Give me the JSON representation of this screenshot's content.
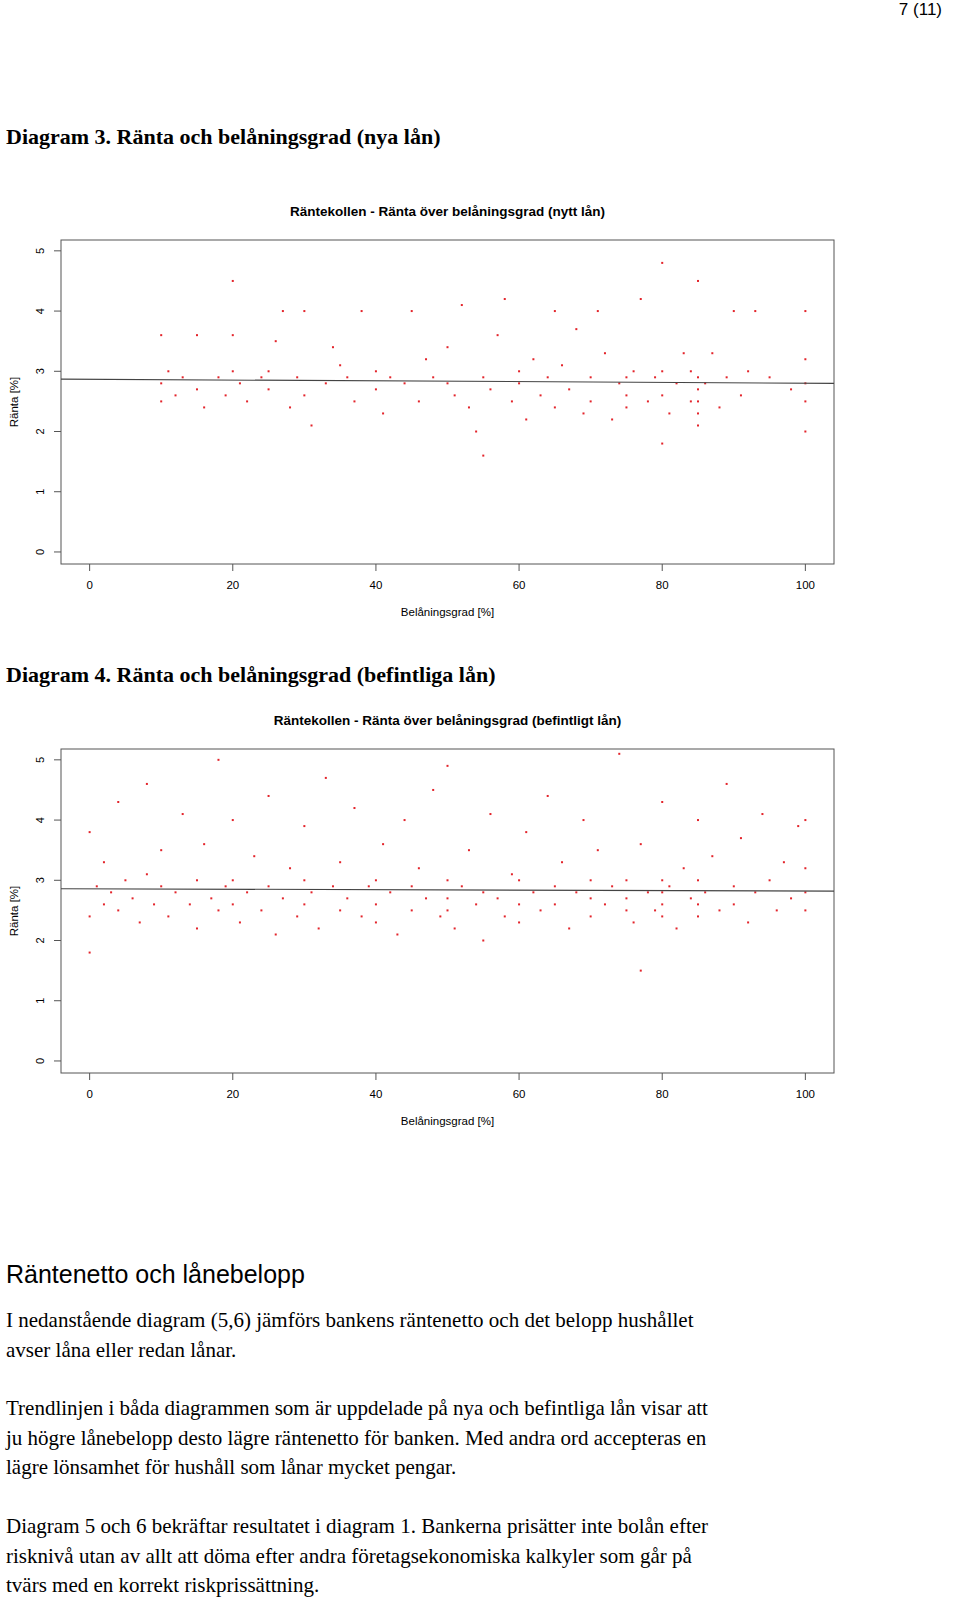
{
  "page_number": "7 (11)",
  "captions": [
    "Diagram 3. Ränta och belåningsgrad (nya lån)",
    "Diagram 4. Ränta och belåningsgrad (befintliga lån)"
  ],
  "chart_data": [
    {
      "type": "scatter",
      "title": "Räntekollen - Ränta över belåningsgrad (nytt lån)",
      "x_label": "Belåningsgrad [%]",
      "y_label": "Ränta [%]",
      "xlim": [
        -4,
        104
      ],
      "ylim": [
        -0.2,
        5.18
      ],
      "xticks": [
        0,
        20,
        40,
        60,
        80,
        100
      ],
      "yticks": [
        0,
        1,
        2,
        3,
        4,
        5
      ],
      "series": [
        {
          "type": "scatter",
          "color": "#e3242b",
          "marker": "point",
          "x": [
            10,
            10,
            10,
            11,
            12,
            13,
            15,
            15,
            16,
            18,
            19,
            20,
            20,
            20,
            21,
            22,
            24,
            25,
            25,
            26,
            27,
            28,
            29,
            30,
            30,
            31,
            33,
            34,
            35,
            36,
            37,
            38,
            40,
            40,
            41,
            42,
            44,
            45,
            46,
            47,
            48,
            50,
            50,
            51,
            52,
            53,
            54,
            55,
            55,
            56,
            57,
            58,
            59,
            60,
            60,
            61,
            62,
            63,
            64,
            65,
            65,
            66,
            67,
            68,
            69,
            70,
            70,
            71,
            72,
            73,
            74,
            75,
            75,
            75,
            76,
            77,
            78,
            79,
            80,
            80,
            80,
            80,
            81,
            82,
            83,
            84,
            84,
            85,
            85,
            85,
            85,
            85,
            85,
            86,
            87,
            88,
            89,
            90,
            91,
            92,
            93,
            95,
            98,
            100,
            100,
            100,
            100,
            100
          ],
          "values": [
            3.6,
            2.8,
            2.5,
            3.0,
            2.6,
            2.9,
            3.6,
            2.7,
            2.4,
            2.9,
            2.6,
            3.0,
            3.6,
            4.5,
            2.8,
            2.5,
            2.9,
            3.0,
            2.7,
            3.5,
            4.0,
            2.4,
            2.9,
            4.0,
            2.6,
            2.1,
            2.8,
            3.4,
            3.1,
            2.9,
            2.5,
            4.0,
            2.7,
            3.0,
            2.3,
            2.9,
            2.8,
            4.0,
            2.5,
            3.2,
            2.9,
            2.8,
            3.4,
            2.6,
            4.1,
            2.4,
            2.0,
            1.6,
            2.9,
            2.7,
            3.6,
            4.2,
            2.5,
            3.0,
            2.8,
            2.2,
            3.2,
            2.6,
            2.9,
            4.0,
            2.4,
            3.1,
            2.7,
            3.7,
            2.3,
            2.9,
            2.5,
            4.0,
            3.3,
            2.2,
            2.8,
            2.9,
            2.6,
            2.4,
            3.0,
            4.2,
            2.5,
            2.9,
            3.0,
            2.6,
            1.8,
            4.8,
            2.3,
            2.8,
            3.3,
            3.0,
            2.5,
            2.9,
            2.7,
            2.5,
            2.3,
            2.1,
            4.5,
            2.8,
            3.3,
            2.4,
            2.9,
            4.0,
            2.6,
            3.0,
            4.0,
            2.9,
            2.7,
            3.2,
            2.8,
            2.5,
            2.0,
            4.0
          ]
        },
        {
          "type": "line",
          "color": "#444444",
          "line_style": "solid",
          "x": [
            -4,
            104
          ],
          "values": [
            2.87,
            2.8
          ]
        }
      ]
    },
    {
      "type": "scatter",
      "title": "Räntekollen - Ränta över belåningsgrad (befintligt lån)",
      "x_label": "Belåningsgrad [%]",
      "y_label": "Ränta [%]",
      "xlim": [
        -4,
        104
      ],
      "ylim": [
        -0.2,
        5.18
      ],
      "xticks": [
        0,
        20,
        40,
        60,
        80,
        100
      ],
      "yticks": [
        0,
        1,
        2,
        3,
        4,
        5
      ],
      "series": [
        {
          "type": "scatter",
          "color": "#e3242b",
          "marker": "point",
          "x": [
            0,
            0,
            0,
            1,
            2,
            2,
            3,
            4,
            4,
            5,
            6,
            7,
            8,
            8,
            9,
            10,
            10,
            11,
            12,
            13,
            14,
            15,
            15,
            16,
            17,
            18,
            18,
            19,
            20,
            20,
            20,
            21,
            22,
            23,
            24,
            25,
            25,
            26,
            27,
            28,
            29,
            30,
            30,
            30,
            31,
            32,
            33,
            34,
            35,
            35,
            36,
            37,
            38,
            39,
            40,
            40,
            40,
            41,
            42,
            43,
            44,
            45,
            45,
            46,
            47,
            48,
            49,
            50,
            50,
            50,
            50,
            51,
            52,
            53,
            54,
            55,
            55,
            56,
            57,
            58,
            59,
            60,
            60,
            60,
            61,
            62,
            63,
            64,
            65,
            65,
            66,
            67,
            68,
            69,
            70,
            70,
            70,
            71,
            72,
            73,
            74,
            75,
            75,
            75,
            76,
            77,
            77,
            78,
            79,
            80,
            80,
            80,
            80,
            80,
            81,
            82,
            83,
            84,
            85,
            85,
            85,
            85,
            86,
            87,
            88,
            89,
            90,
            90,
            91,
            92,
            93,
            94,
            95,
            96,
            97,
            98,
            99,
            100,
            100,
            100,
            100
          ],
          "values": [
            3.8,
            2.4,
            1.8,
            2.9,
            2.6,
            3.3,
            2.8,
            4.3,
            2.5,
            3.0,
            2.7,
            2.3,
            3.1,
            4.6,
            2.6,
            2.9,
            3.5,
            2.4,
            2.8,
            4.1,
            2.6,
            3.0,
            2.2,
            3.6,
            2.7,
            2.5,
            5.0,
            2.9,
            3.0,
            2.6,
            4.0,
            2.3,
            2.8,
            3.4,
            2.5,
            2.9,
            4.4,
            2.1,
            2.7,
            3.2,
            2.4,
            3.0,
            2.6,
            3.9,
            2.8,
            2.2,
            4.7,
            2.9,
            2.5,
            3.3,
            2.7,
            4.2,
            2.4,
            2.9,
            3.0,
            2.6,
            2.3,
            3.6,
            2.8,
            2.1,
            4.0,
            2.9,
            2.5,
            3.2,
            2.7,
            4.5,
            2.4,
            3.0,
            2.7,
            2.5,
            4.9,
            2.2,
            2.9,
            3.5,
            2.6,
            2.8,
            2.0,
            4.1,
            2.7,
            2.4,
            3.1,
            3.0,
            2.6,
            2.3,
            3.8,
            2.8,
            2.5,
            4.4,
            2.9,
            2.6,
            3.3,
            2.2,
            2.8,
            4.0,
            3.0,
            2.7,
            2.4,
            3.5,
            2.6,
            2.9,
            5.1,
            3.0,
            2.7,
            2.5,
            2.3,
            1.5,
            3.6,
            2.8,
            2.5,
            3.0,
            2.8,
            2.6,
            2.4,
            4.3,
            2.9,
            2.2,
            3.2,
            2.7,
            3.0,
            2.6,
            2.4,
            4.0,
            2.8,
            3.4,
            2.5,
            4.6,
            2.9,
            2.6,
            3.7,
            2.3,
            2.8,
            4.1,
            3.0,
            2.5,
            3.3,
            2.7,
            3.9,
            3.2,
            2.8,
            2.5,
            4.0
          ]
        },
        {
          "type": "line",
          "color": "#444444",
          "line_style": "solid",
          "x": [
            -4,
            104
          ],
          "values": [
            2.86,
            2.82
          ]
        }
      ]
    }
  ],
  "heading": "Räntenetto och lånebelopp",
  "paragraphs": [
    [
      "I nedanstående diagram (5,6) jämförs bankens räntenetto och det belopp hushållet",
      "avser låna eller redan lånar."
    ],
    [
      "Trendlinjen i båda diagrammen som är uppdelade på nya och befintliga lån visar att",
      "ju högre lånebelopp desto lägre räntenetto för banken. Med andra ord accepteras en",
      "lägre lönsamhet för hushåll som lånar mycket pengar."
    ],
    [
      "Diagram 5 och 6 bekräftar resultatet i diagram 1. Bankerna prisätter inte bolån efter",
      "risknivå utan av allt att döma efter andra företagsekonomiska kalkyler som går på",
      "tvärs med en korrekt riskprissättning."
    ]
  ]
}
